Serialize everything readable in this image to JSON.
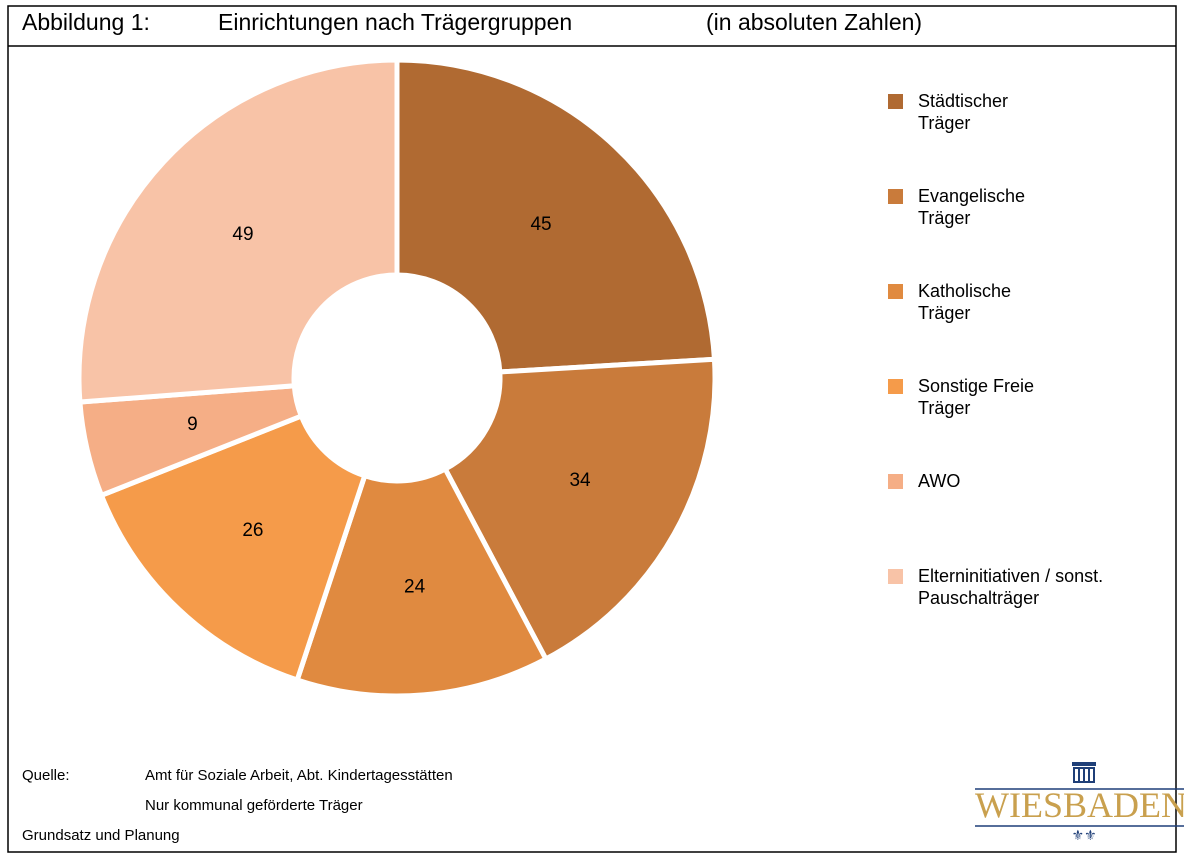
{
  "chart_data": {
    "type": "donut",
    "title_label": "Abbildung 1:",
    "title": "Einrichtungen nach Trägergruppen",
    "subtitle": "(in absoluten Zahlen)",
    "categories": [
      "Städtischer Träger",
      "Evangelische Träger",
      "Katholische Träger",
      "Sonstige Freie Träger",
      "AWO",
      "Elterninitiativen / sonst. Pauschalträger"
    ],
    "values": [
      45,
      34,
      24,
      26,
      9,
      49
    ],
    "colors": [
      "#b06a32",
      "#c97b3b",
      "#e08a40",
      "#f59b4a",
      "#f5ae86",
      "#f8c3a7"
    ],
    "legend": "right"
  },
  "source": {
    "label": "Quelle:",
    "lines": [
      "Amt für Soziale Arbeit, Abt. Kindertagesstätten",
      "Nur kommunal geförderte Träger"
    ],
    "footer": "Grundsatz und Planung"
  },
  "logo": {
    "text": "WIESBADEN"
  }
}
